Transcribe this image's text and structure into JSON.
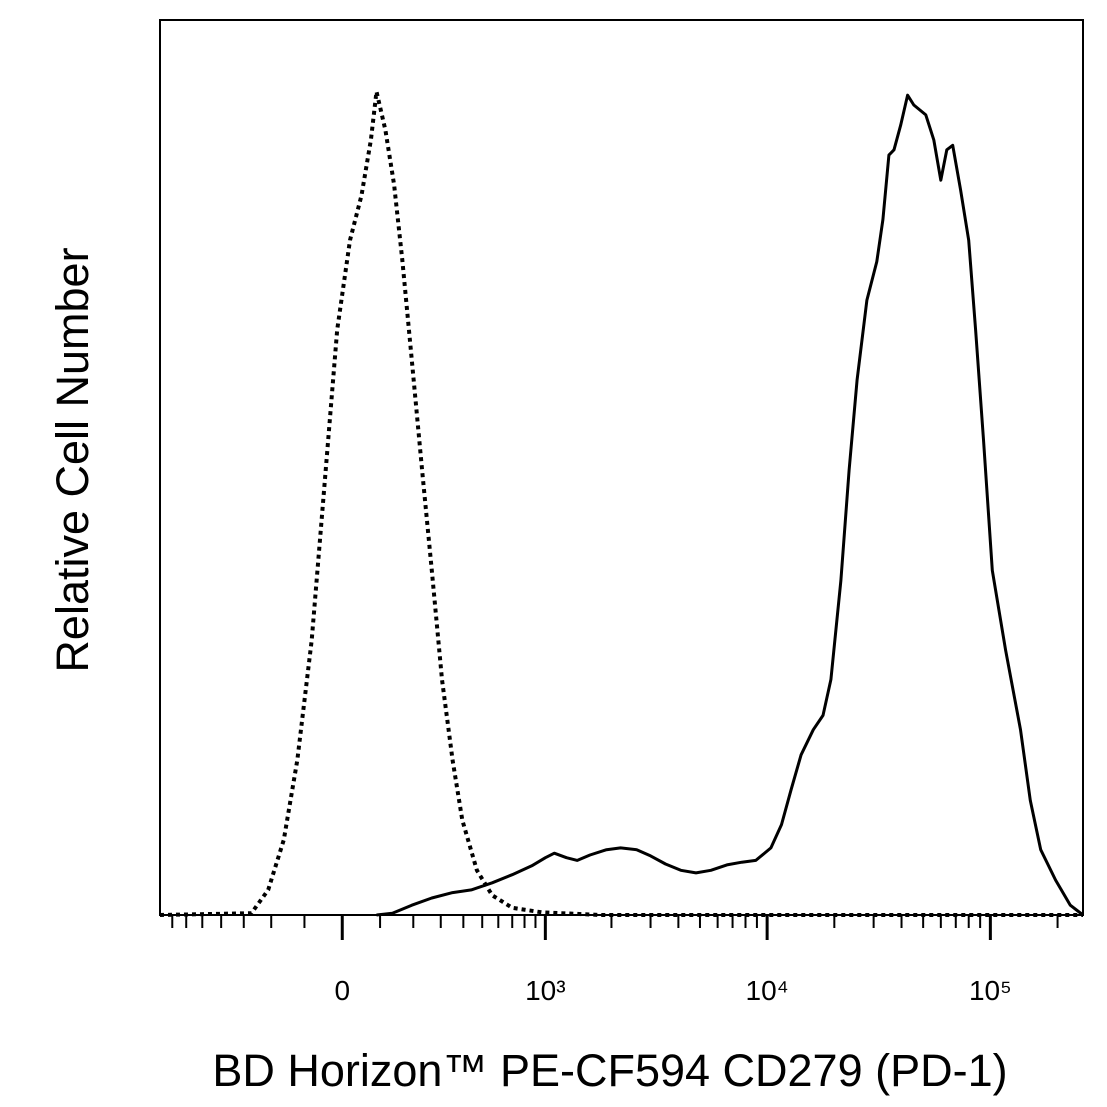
{
  "chart_data": {
    "type": "line",
    "xlabel": "BD Horizon™ PE-CF594 CD279 (PD-1)",
    "ylabel": "Relative Cell Number",
    "xscale": "biexponential",
    "xlim": [
      -800,
      260000
    ],
    "xticks": [
      0,
      {
        "value": 1000,
        "label": "10³"
      },
      {
        "value": 10000,
        "label": "10⁴"
      },
      {
        "value": 100000,
        "label": "10⁵"
      }
    ],
    "xminor_ticks": [
      -700,
      -600,
      -500,
      -400,
      -300,
      -200,
      -100,
      100,
      200,
      300,
      400,
      500,
      600,
      700,
      800,
      900,
      2000,
      3000,
      4000,
      5000,
      6000,
      7000,
      8000,
      9000,
      20000,
      30000,
      40000,
      50000,
      60000,
      70000,
      80000,
      90000,
      200000
    ],
    "ylim": [
      0,
      100
    ],
    "series": [
      {
        "color": "#000000",
        "dash": true,
        "x": [
          -800,
          -270,
          -210,
          -160,
          -120,
          -80,
          -45,
          -13,
          20,
          50,
          75,
          90,
          115,
          140,
          165,
          195,
          230,
          265,
          305,
          350,
          395,
          470,
          560,
          700,
          960,
          1800,
          260000
        ],
        "values": [
          0,
          0.2,
          2.8,
          8.4,
          17.3,
          30.7,
          48.6,
          65.4,
          75.4,
          80.4,
          86.6,
          92,
          87.7,
          81.6,
          73.2,
          62,
          49.7,
          38.5,
          26.3,
          17.3,
          10.6,
          5,
          2.2,
          0.8,
          0.3,
          0,
          0
        ]
      },
      {
        "color": "#000000",
        "dash": false,
        "x": [
          90,
          135,
          195,
          265,
          350,
          440,
          560,
          700,
          865,
          1000,
          1100,
          1250,
          1400,
          1600,
          1900,
          2200,
          2600,
          3000,
          3500,
          4100,
          4800,
          5600,
          6600,
          7700,
          8900,
          10400,
          11600,
          12800,
          14200,
          16100,
          17800,
          19300,
          21400,
          23300,
          25300,
          28000,
          31000,
          33000,
          35100,
          37000,
          39700,
          42600,
          45400,
          51400,
          55800,
          60000,
          63800,
          67800,
          73600,
          80000,
          85900,
          93200,
          102000,
          117000,
          136500,
          151000,
          168000,
          196000,
          228000,
          260000
        ],
        "values": [
          0,
          0.2,
          1.1,
          1.9,
          2.5,
          2.8,
          3.6,
          4.5,
          5.5,
          6.4,
          6.9,
          6.4,
          6.1,
          6.7,
          7.3,
          7.5,
          7.3,
          6.6,
          5.7,
          5.0,
          4.7,
          5.0,
          5.6,
          5.9,
          6.1,
          7.5,
          10.1,
          14.0,
          17.9,
          20.7,
          22.3,
          26.3,
          37.4,
          49.7,
          59.8,
          68.7,
          73.0,
          77.7,
          84.9,
          85.5,
          88.3,
          91.6,
          90.5,
          89.4,
          86.6,
          82.1,
          85.5,
          86.0,
          81.0,
          75.4,
          65.4,
          53.1,
          38.5,
          29.6,
          20.7,
          12.8,
          7.3,
          3.9,
          1.1,
          0
        ]
      }
    ]
  }
}
